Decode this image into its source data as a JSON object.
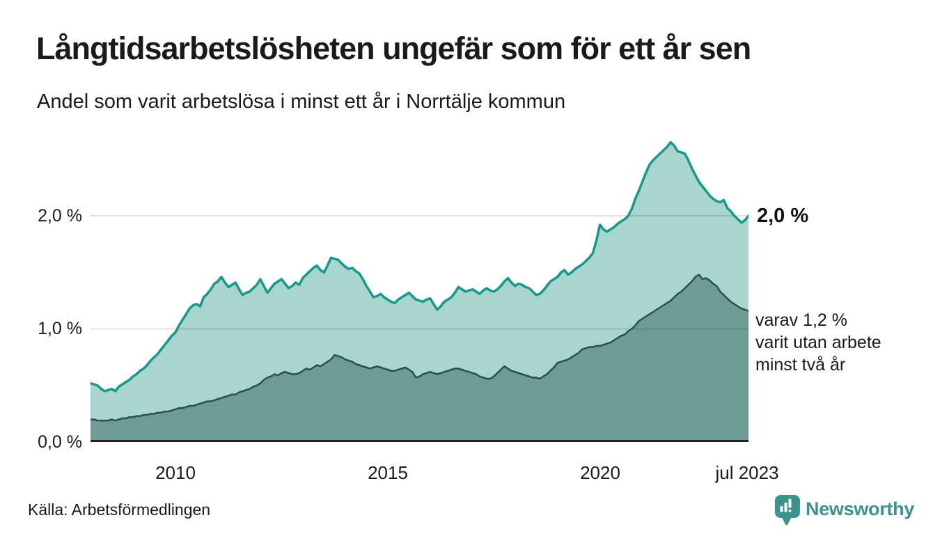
{
  "header": {
    "title": "Långtidsarbetslösheten ungefär som för ett år sen",
    "subtitle": "Andel som varit arbetslösa i minst ett år i Norrtälje kommun"
  },
  "chart_data": {
    "type": "area",
    "title": "Långtidsarbetslösheten ungefär som för ett år sen",
    "subtitle": "Andel som varit arbetslösa i minst ett år i Norrtälje kommun",
    "x_start": "2008-01",
    "x_end": "2023-07",
    "x_interval": "month",
    "ylim": [
      0,
      2.71
    ],
    "grid": "horizontal",
    "legend_position": "end-of-line-labels",
    "y_ticks": [
      {
        "label": "0,0 %",
        "value": 0
      },
      {
        "label": "1,0 %",
        "value": 1
      },
      {
        "label": "2,0 %",
        "value": 2
      }
    ],
    "x_ticks": [
      {
        "label": "2010",
        "month_index": 24
      },
      {
        "label": "2015",
        "month_index": 84
      },
      {
        "label": "2020",
        "month_index": 144
      },
      {
        "label": "jul 2023",
        "month_index": 186
      }
    ],
    "series": [
      {
        "name": "Andel som varit arbetslösa minst ett år",
        "line_color": "#17998a",
        "fill_color": "#a8d5ce",
        "line_width": 3.5,
        "end_value_label": "2,0 %",
        "values": [
          0.52,
          0.51,
          0.5,
          0.47,
          0.45,
          0.46,
          0.47,
          0.45,
          0.49,
          0.51,
          0.53,
          0.55,
          0.58,
          0.6,
          0.63,
          0.65,
          0.68,
          0.72,
          0.75,
          0.78,
          0.82,
          0.86,
          0.9,
          0.94,
          0.97,
          1.03,
          1.08,
          1.13,
          1.18,
          1.21,
          1.22,
          1.2,
          1.28,
          1.31,
          1.35,
          1.4,
          1.42,
          1.46,
          1.41,
          1.37,
          1.39,
          1.41,
          1.35,
          1.3,
          1.32,
          1.33,
          1.36,
          1.39,
          1.44,
          1.38,
          1.32,
          1.36,
          1.4,
          1.42,
          1.44,
          1.4,
          1.36,
          1.38,
          1.41,
          1.39,
          1.45,
          1.48,
          1.51,
          1.54,
          1.56,
          1.52,
          1.5,
          1.56,
          1.63,
          1.62,
          1.61,
          1.58,
          1.55,
          1.53,
          1.54,
          1.51,
          1.49,
          1.44,
          1.38,
          1.33,
          1.28,
          1.29,
          1.31,
          1.28,
          1.26,
          1.24,
          1.23,
          1.26,
          1.28,
          1.3,
          1.32,
          1.29,
          1.26,
          1.25,
          1.24,
          1.26,
          1.27,
          1.22,
          1.17,
          1.2,
          1.24,
          1.26,
          1.28,
          1.32,
          1.37,
          1.35,
          1.33,
          1.34,
          1.35,
          1.33,
          1.31,
          1.34,
          1.36,
          1.34,
          1.33,
          1.35,
          1.38,
          1.42,
          1.45,
          1.41,
          1.38,
          1.4,
          1.39,
          1.37,
          1.36,
          1.33,
          1.3,
          1.31,
          1.34,
          1.38,
          1.42,
          1.44,
          1.46,
          1.5,
          1.52,
          1.48,
          1.5,
          1.53,
          1.55,
          1.57,
          1.6,
          1.63,
          1.67,
          1.78,
          1.92,
          1.88,
          1.86,
          1.88,
          1.9,
          1.93,
          1.95,
          1.97,
          2.0,
          2.06,
          2.15,
          2.22,
          2.3,
          2.38,
          2.45,
          2.49,
          2.52,
          2.55,
          2.58,
          2.61,
          2.65,
          2.62,
          2.57,
          2.56,
          2.55,
          2.49,
          2.42,
          2.36,
          2.3,
          2.26,
          2.22,
          2.18,
          2.15,
          2.13,
          2.12,
          2.14,
          2.07,
          2.04,
          2.0,
          1.97,
          1.94,
          1.96,
          2.0
        ]
      },
      {
        "name": "varav arbetslösa minst två år",
        "line_color": "#2d4d49",
        "fill_color": "#6d9c96",
        "line_width": 2.5,
        "end_value_label": "varav 1,2 % varit utan arbete minst två år",
        "values": [
          0.2,
          0.2,
          0.19,
          0.19,
          0.19,
          0.19,
          0.2,
          0.19,
          0.2,
          0.21,
          0.21,
          0.22,
          0.22,
          0.23,
          0.23,
          0.24,
          0.24,
          0.25,
          0.25,
          0.26,
          0.26,
          0.27,
          0.27,
          0.28,
          0.29,
          0.3,
          0.3,
          0.31,
          0.32,
          0.32,
          0.33,
          0.34,
          0.35,
          0.36,
          0.36,
          0.37,
          0.38,
          0.39,
          0.4,
          0.41,
          0.42,
          0.42,
          0.44,
          0.45,
          0.46,
          0.47,
          0.49,
          0.5,
          0.52,
          0.55,
          0.57,
          0.58,
          0.6,
          0.59,
          0.61,
          0.62,
          0.61,
          0.6,
          0.6,
          0.61,
          0.63,
          0.65,
          0.64,
          0.66,
          0.68,
          0.67,
          0.69,
          0.71,
          0.73,
          0.77,
          0.76,
          0.75,
          0.73,
          0.72,
          0.71,
          0.69,
          0.68,
          0.67,
          0.66,
          0.65,
          0.66,
          0.67,
          0.66,
          0.65,
          0.64,
          0.63,
          0.63,
          0.64,
          0.65,
          0.66,
          0.64,
          0.62,
          0.57,
          0.58,
          0.6,
          0.61,
          0.62,
          0.61,
          0.6,
          0.61,
          0.62,
          0.63,
          0.64,
          0.65,
          0.65,
          0.64,
          0.63,
          0.62,
          0.61,
          0.6,
          0.58,
          0.57,
          0.56,
          0.56,
          0.58,
          0.61,
          0.64,
          0.67,
          0.65,
          0.63,
          0.62,
          0.61,
          0.6,
          0.59,
          0.58,
          0.57,
          0.57,
          0.56,
          0.58,
          0.6,
          0.63,
          0.66,
          0.7,
          0.71,
          0.72,
          0.73,
          0.75,
          0.77,
          0.79,
          0.82,
          0.83,
          0.84,
          0.84,
          0.85,
          0.85,
          0.86,
          0.87,
          0.88,
          0.9,
          0.92,
          0.94,
          0.95,
          0.98,
          1.0,
          1.03,
          1.07,
          1.09,
          1.11,
          1.13,
          1.15,
          1.17,
          1.19,
          1.21,
          1.23,
          1.25,
          1.28,
          1.31,
          1.33,
          1.36,
          1.39,
          1.42,
          1.46,
          1.48,
          1.44,
          1.45,
          1.43,
          1.4,
          1.38,
          1.33,
          1.3,
          1.27,
          1.24,
          1.22,
          1.2,
          1.18,
          1.17,
          1.16
        ]
      }
    ]
  },
  "annotations": {
    "series1_end_label": "2,0 %",
    "series2_note_lines": [
      "varav 1,2 %",
      "varit utan arbete",
      "minst två år"
    ]
  },
  "footer": {
    "source": "Källa: Arbetsförmedlingen",
    "brand": "Newsworthy"
  },
  "colors": {
    "background": "#ffffff",
    "text": "#1a1a1a",
    "axis": "#222222",
    "gridline": "rgba(0,0,0,0.12)",
    "series1_line": "#17998a",
    "series1_fill": "#a8d5ce",
    "series2_line": "#2d4d49",
    "series2_fill": "#6d9c96",
    "brand_teal": "#3a948b"
  }
}
